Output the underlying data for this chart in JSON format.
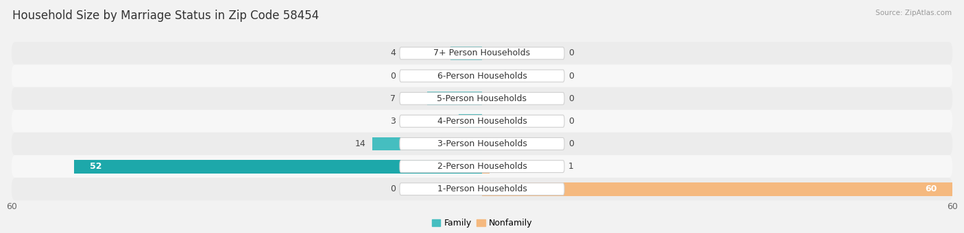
{
  "title": "Household Size by Marriage Status in Zip Code 58454",
  "source": "Source: ZipAtlas.com",
  "categories": [
    "7+ Person Households",
    "6-Person Households",
    "5-Person Households",
    "4-Person Households",
    "3-Person Households",
    "2-Person Households",
    "1-Person Households"
  ],
  "family_values": [
    4,
    0,
    7,
    3,
    14,
    52,
    0
  ],
  "nonfamily_values": [
    0,
    0,
    0,
    0,
    0,
    1,
    60
  ],
  "family_color": "#45bec0",
  "nonfamily_color": "#f5b97f",
  "family_color_large": "#1da8aa",
  "xlim": 60,
  "bar_height": 0.6,
  "title_fontsize": 12,
  "label_fontsize": 9,
  "tick_fontsize": 9,
  "legend_fontsize": 9,
  "row_colors": [
    "#ececec",
    "#f7f7f7"
  ]
}
